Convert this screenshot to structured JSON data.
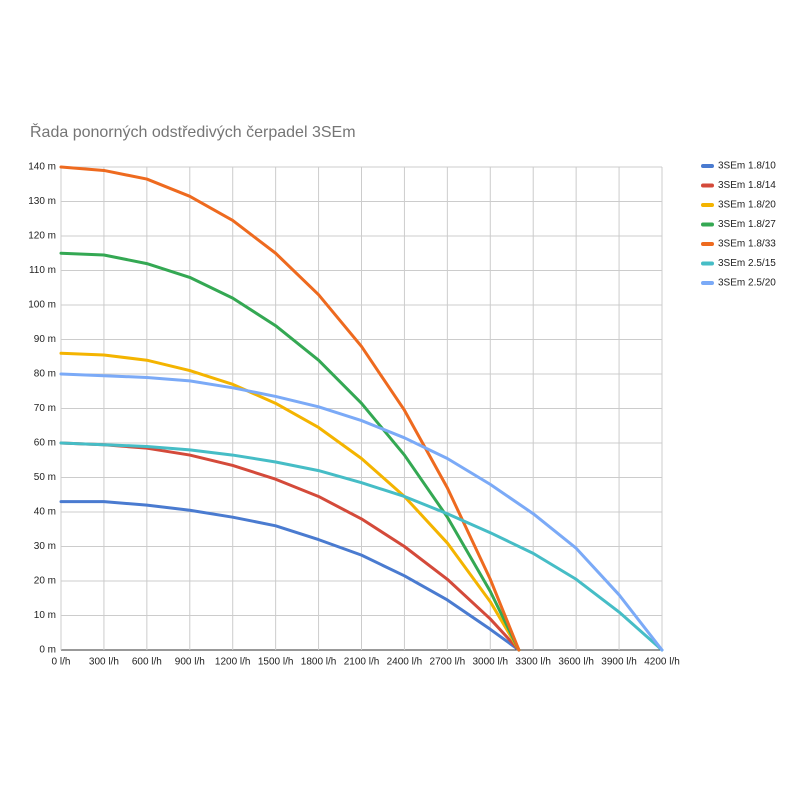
{
  "chart_data": {
    "type": "line",
    "title": "Řada ponorných odstředivých čerpadel 3SEm",
    "xlim": [
      0,
      4200
    ],
    "ylim": [
      0,
      140
    ],
    "grid": true,
    "legend": "right",
    "xticks": [
      {
        "value": 0,
        "label": "0 l/h"
      },
      {
        "value": 300,
        "label": "300 l/h"
      },
      {
        "value": 600,
        "label": "600 l/h"
      },
      {
        "value": 900,
        "label": "900 l/h"
      },
      {
        "value": 1200,
        "label": "1200 l/h"
      },
      {
        "value": 1500,
        "label": "1500 l/h"
      },
      {
        "value": 1800,
        "label": "1800 l/h"
      },
      {
        "value": 2100,
        "label": "2100 l/h"
      },
      {
        "value": 2400,
        "label": "2400 l/h"
      },
      {
        "value": 2700,
        "label": "2700 l/h"
      },
      {
        "value": 3000,
        "label": "3000 l/h"
      },
      {
        "value": 3300,
        "label": "3300 l/h"
      },
      {
        "value": 3600,
        "label": "3600 l/h"
      },
      {
        "value": 3900,
        "label": "3900 l/h"
      },
      {
        "value": 4200,
        "label": "4200 l/h"
      }
    ],
    "yticks": [
      {
        "value": 0,
        "label": "0 m"
      },
      {
        "value": 10,
        "label": "10 m"
      },
      {
        "value": 20,
        "label": "20 m"
      },
      {
        "value": 30,
        "label": "30 m"
      },
      {
        "value": 40,
        "label": "40 m"
      },
      {
        "value": 50,
        "label": "50 m"
      },
      {
        "value": 60,
        "label": "60 m"
      },
      {
        "value": 70,
        "label": "70 m"
      },
      {
        "value": 80,
        "label": "80 m"
      },
      {
        "value": 90,
        "label": "90 m"
      },
      {
        "value": 100,
        "label": "100 m"
      },
      {
        "value": 110,
        "label": "110 m"
      },
      {
        "value": 120,
        "label": "120 m"
      },
      {
        "value": 130,
        "label": "130 m"
      },
      {
        "value": 140,
        "label": "140 m"
      }
    ],
    "series": [
      {
        "name": "3SEm 1.8/10",
        "color": "#4a7bd0",
        "x": [
          0,
          300,
          600,
          900,
          1200,
          1500,
          1800,
          2100,
          2400,
          2700,
          3000,
          3200
        ],
        "values": [
          43,
          43,
          42,
          40.5,
          38.5,
          36,
          32,
          27.5,
          21.5,
          14.5,
          6,
          0
        ]
      },
      {
        "name": "3SEm 1.8/14",
        "color": "#d44a3a",
        "x": [
          0,
          300,
          600,
          900,
          1200,
          1500,
          1800,
          2100,
          2400,
          2700,
          3000,
          3200
        ],
        "values": [
          60,
          59.5,
          58.5,
          56.5,
          53.5,
          49.5,
          44.5,
          38,
          30,
          20.5,
          9,
          0
        ]
      },
      {
        "name": "3SEm 1.8/20",
        "color": "#f4b400",
        "x": [
          0,
          300,
          600,
          900,
          1200,
          1500,
          1800,
          2100,
          2400,
          2700,
          3000,
          3200
        ],
        "values": [
          86,
          85.5,
          84,
          81,
          77,
          71.5,
          64.5,
          55.5,
          44.5,
          31,
          14,
          0
        ]
      },
      {
        "name": "3SEm 1.8/27",
        "color": "#34a853",
        "x": [
          0,
          300,
          600,
          900,
          1200,
          1500,
          1800,
          2100,
          2400,
          2700,
          3000,
          3200
        ],
        "values": [
          115,
          114.5,
          112,
          108,
          102,
          94,
          84,
          71.5,
          56.5,
          38.5,
          17,
          0
        ]
      },
      {
        "name": "3SEm 1.8/33",
        "color": "#ee6a1f",
        "x": [
          0,
          300,
          600,
          900,
          1200,
          1500,
          1800,
          2100,
          2400,
          2700,
          3000,
          3200
        ],
        "values": [
          140,
          139,
          136.5,
          131.5,
          124.5,
          115,
          103,
          88,
          69.5,
          47,
          20.5,
          0
        ]
      },
      {
        "name": "3SEm 2.5/15",
        "color": "#46bdc6",
        "x": [
          0,
          300,
          600,
          900,
          1200,
          1500,
          1800,
          2100,
          2400,
          2700,
          3000,
          3300,
          3600,
          3900,
          4200
        ],
        "values": [
          60,
          59.5,
          59,
          58,
          56.5,
          54.5,
          52,
          48.5,
          44.5,
          39.5,
          34,
          28,
          20.5,
          11,
          0
        ]
      },
      {
        "name": "3SEm 2.5/20",
        "color": "#7baaf7",
        "x": [
          0,
          300,
          600,
          900,
          1200,
          1500,
          1800,
          2100,
          2400,
          2700,
          3000,
          3300,
          3600,
          3900,
          4200
        ],
        "values": [
          80,
          79.5,
          79,
          78,
          76,
          73.5,
          70.5,
          66.5,
          61.5,
          55.5,
          48,
          39.5,
          29.5,
          16,
          0
        ]
      }
    ]
  }
}
